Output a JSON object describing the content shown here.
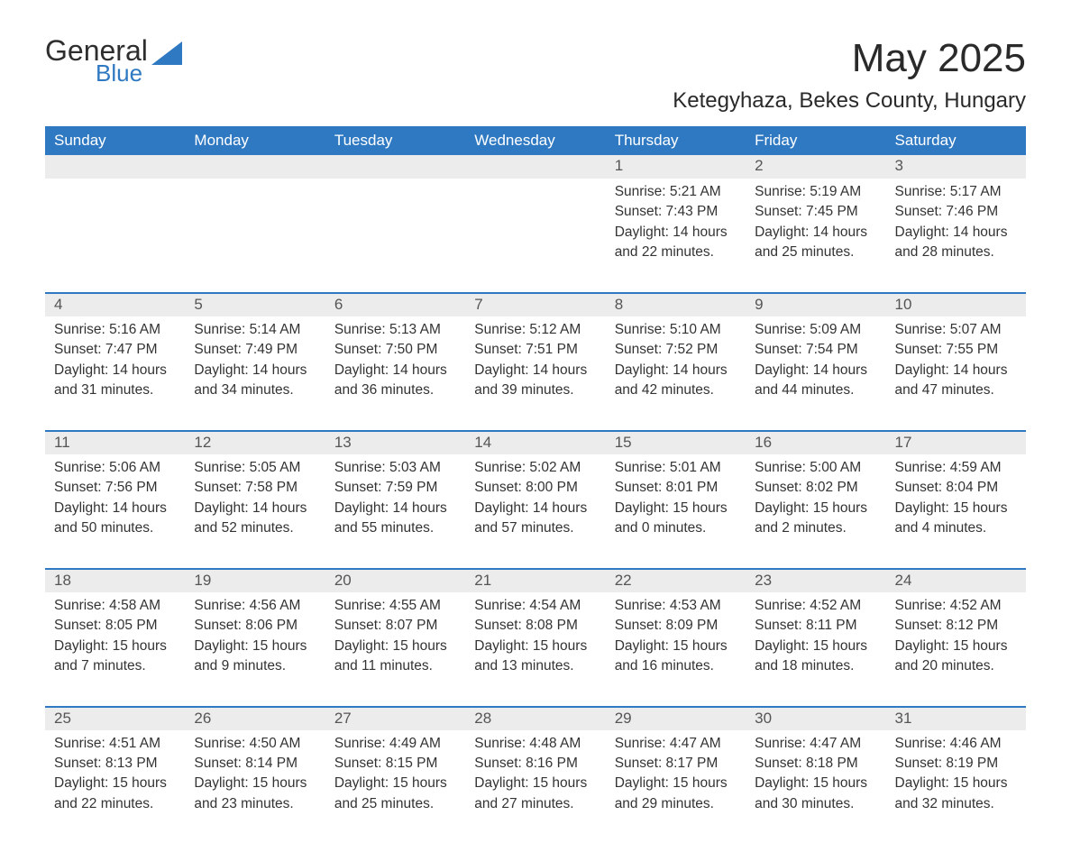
{
  "brand": {
    "name_main": "General",
    "name_accent": "Blue",
    "accent_color": "#2f79c2",
    "text_color": "#2e2e2e"
  },
  "page": {
    "title": "May 2025",
    "location": "Ketegyhaza, Bekes County, Hungary",
    "title_fontsize": 44,
    "location_fontsize": 24,
    "background_color": "#ffffff"
  },
  "calendar": {
    "header_bg": "#2f79c2",
    "header_fg": "#ffffff",
    "daynum_bg": "#ececec",
    "rule_color": "#2f79c2",
    "body_text_color": "#333333",
    "day_headers": [
      "Sunday",
      "Monday",
      "Tuesday",
      "Wednesday",
      "Thursday",
      "Friday",
      "Saturday"
    ],
    "weeks": [
      [
        null,
        null,
        null,
        null,
        {
          "num": "1",
          "sunrise": "5:21 AM",
          "sunset": "7:43 PM",
          "daylight": "14 hours and 22 minutes."
        },
        {
          "num": "2",
          "sunrise": "5:19 AM",
          "sunset": "7:45 PM",
          "daylight": "14 hours and 25 minutes."
        },
        {
          "num": "3",
          "sunrise": "5:17 AM",
          "sunset": "7:46 PM",
          "daylight": "14 hours and 28 minutes."
        }
      ],
      [
        {
          "num": "4",
          "sunrise": "5:16 AM",
          "sunset": "7:47 PM",
          "daylight": "14 hours and 31 minutes."
        },
        {
          "num": "5",
          "sunrise": "5:14 AM",
          "sunset": "7:49 PM",
          "daylight": "14 hours and 34 minutes."
        },
        {
          "num": "6",
          "sunrise": "5:13 AM",
          "sunset": "7:50 PM",
          "daylight": "14 hours and 36 minutes."
        },
        {
          "num": "7",
          "sunrise": "5:12 AM",
          "sunset": "7:51 PM",
          "daylight": "14 hours and 39 minutes."
        },
        {
          "num": "8",
          "sunrise": "5:10 AM",
          "sunset": "7:52 PM",
          "daylight": "14 hours and 42 minutes."
        },
        {
          "num": "9",
          "sunrise": "5:09 AM",
          "sunset": "7:54 PM",
          "daylight": "14 hours and 44 minutes."
        },
        {
          "num": "10",
          "sunrise": "5:07 AM",
          "sunset": "7:55 PM",
          "daylight": "14 hours and 47 minutes."
        }
      ],
      [
        {
          "num": "11",
          "sunrise": "5:06 AM",
          "sunset": "7:56 PM",
          "daylight": "14 hours and 50 minutes."
        },
        {
          "num": "12",
          "sunrise": "5:05 AM",
          "sunset": "7:58 PM",
          "daylight": "14 hours and 52 minutes."
        },
        {
          "num": "13",
          "sunrise": "5:03 AM",
          "sunset": "7:59 PM",
          "daylight": "14 hours and 55 minutes."
        },
        {
          "num": "14",
          "sunrise": "5:02 AM",
          "sunset": "8:00 PM",
          "daylight": "14 hours and 57 minutes."
        },
        {
          "num": "15",
          "sunrise": "5:01 AM",
          "sunset": "8:01 PM",
          "daylight": "15 hours and 0 minutes."
        },
        {
          "num": "16",
          "sunrise": "5:00 AM",
          "sunset": "8:02 PM",
          "daylight": "15 hours and 2 minutes."
        },
        {
          "num": "17",
          "sunrise": "4:59 AM",
          "sunset": "8:04 PM",
          "daylight": "15 hours and 4 minutes."
        }
      ],
      [
        {
          "num": "18",
          "sunrise": "4:58 AM",
          "sunset": "8:05 PM",
          "daylight": "15 hours and 7 minutes."
        },
        {
          "num": "19",
          "sunrise": "4:56 AM",
          "sunset": "8:06 PM",
          "daylight": "15 hours and 9 minutes."
        },
        {
          "num": "20",
          "sunrise": "4:55 AM",
          "sunset": "8:07 PM",
          "daylight": "15 hours and 11 minutes."
        },
        {
          "num": "21",
          "sunrise": "4:54 AM",
          "sunset": "8:08 PM",
          "daylight": "15 hours and 13 minutes."
        },
        {
          "num": "22",
          "sunrise": "4:53 AM",
          "sunset": "8:09 PM",
          "daylight": "15 hours and 16 minutes."
        },
        {
          "num": "23",
          "sunrise": "4:52 AM",
          "sunset": "8:11 PM",
          "daylight": "15 hours and 18 minutes."
        },
        {
          "num": "24",
          "sunrise": "4:52 AM",
          "sunset": "8:12 PM",
          "daylight": "15 hours and 20 minutes."
        }
      ],
      [
        {
          "num": "25",
          "sunrise": "4:51 AM",
          "sunset": "8:13 PM",
          "daylight": "15 hours and 22 minutes."
        },
        {
          "num": "26",
          "sunrise": "4:50 AM",
          "sunset": "8:14 PM",
          "daylight": "15 hours and 23 minutes."
        },
        {
          "num": "27",
          "sunrise": "4:49 AM",
          "sunset": "8:15 PM",
          "daylight": "15 hours and 25 minutes."
        },
        {
          "num": "28",
          "sunrise": "4:48 AM",
          "sunset": "8:16 PM",
          "daylight": "15 hours and 27 minutes."
        },
        {
          "num": "29",
          "sunrise": "4:47 AM",
          "sunset": "8:17 PM",
          "daylight": "15 hours and 29 minutes."
        },
        {
          "num": "30",
          "sunrise": "4:47 AM",
          "sunset": "8:18 PM",
          "daylight": "15 hours and 30 minutes."
        },
        {
          "num": "31",
          "sunrise": "4:46 AM",
          "sunset": "8:19 PM",
          "daylight": "15 hours and 32 minutes."
        }
      ]
    ],
    "labels": {
      "sunrise": "Sunrise:",
      "sunset": "Sunset:",
      "daylight": "Daylight:"
    }
  }
}
